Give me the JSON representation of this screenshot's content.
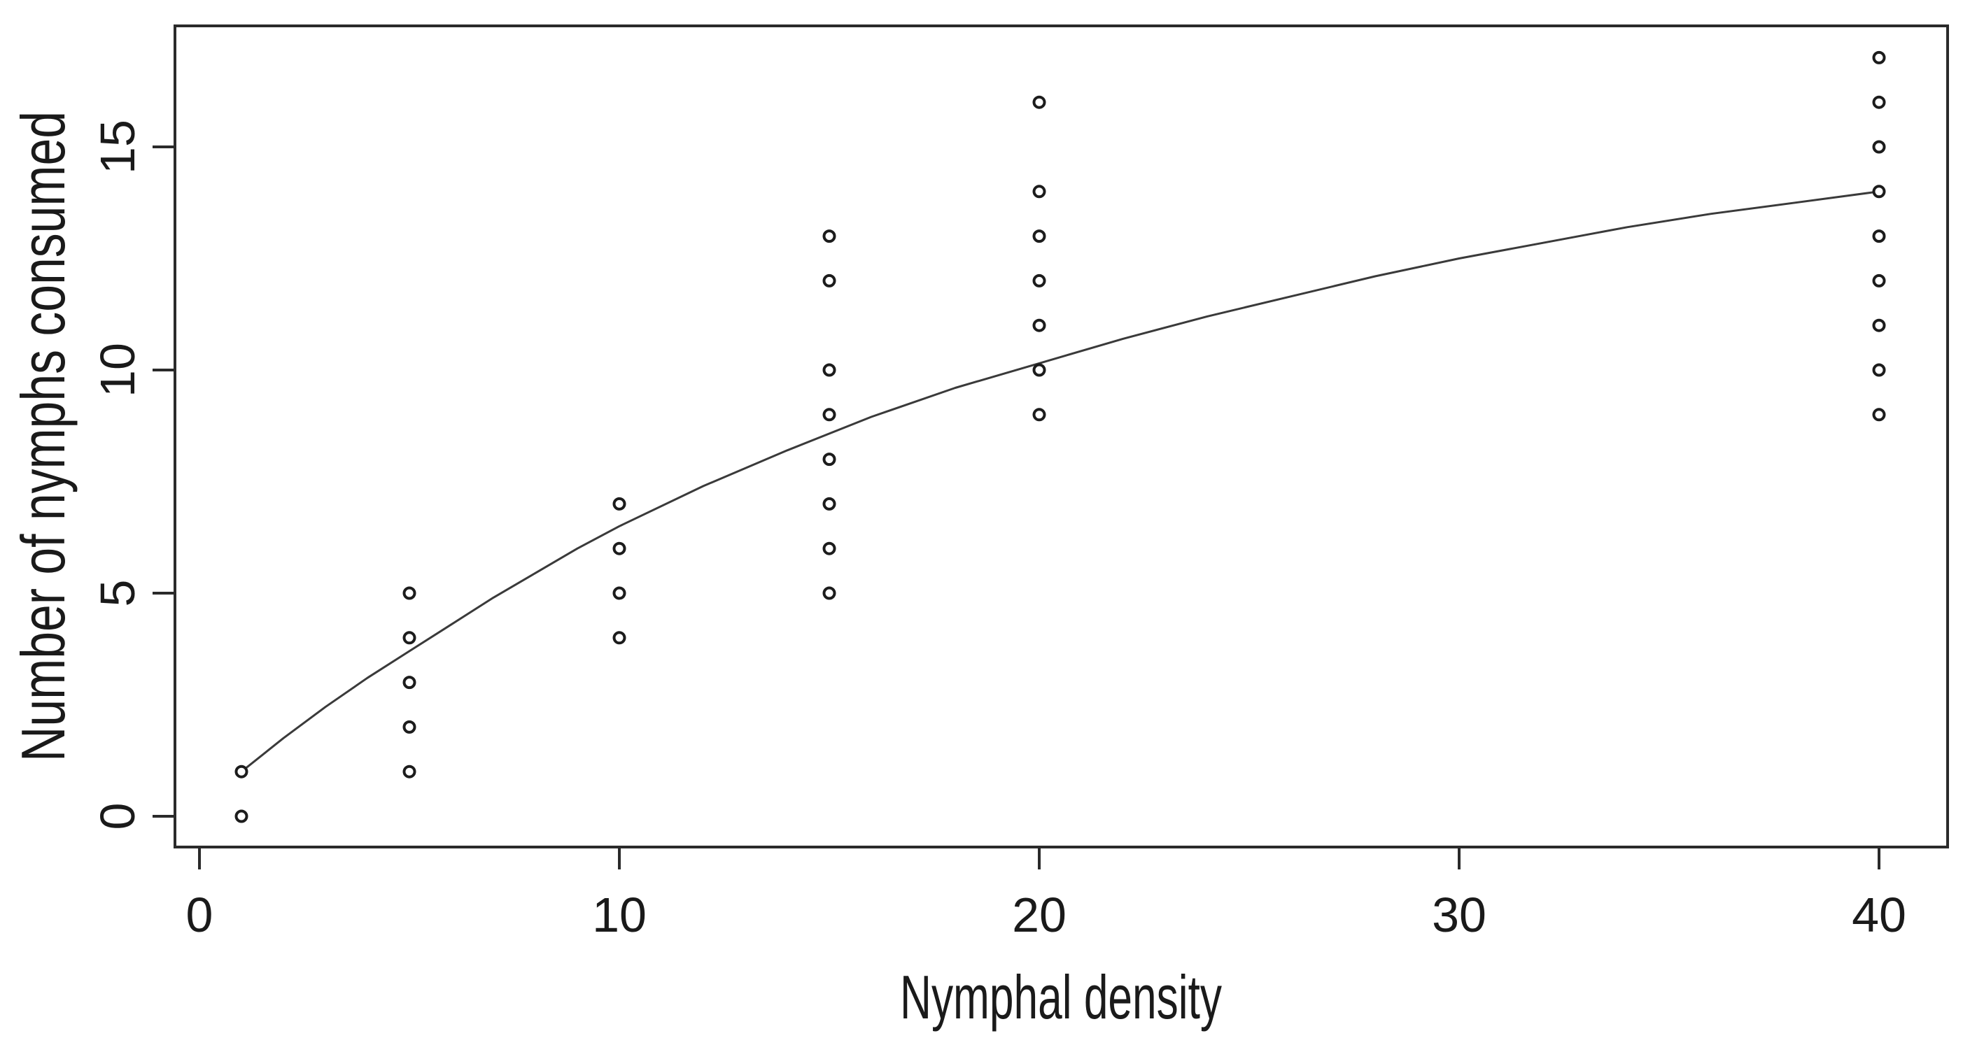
{
  "figure": {
    "background": "#ffffff"
  },
  "chart_data": {
    "type": "scatter",
    "title": "",
    "xlabel": "Nymphal density",
    "ylabel": "Number of nymphs consumed",
    "xlim": [
      -0.6,
      41.6
    ],
    "ylim": [
      -0.7,
      17.7
    ],
    "grid": false,
    "legend": false,
    "frame_box": true,
    "marker": "open-circle",
    "x_tick_values": [
      0,
      10,
      20,
      30,
      40
    ],
    "x_tick_labels": [
      "0",
      "10",
      "20",
      "30",
      "40"
    ],
    "y_tick_values": [
      0,
      5,
      10,
      15
    ],
    "y_tick_labels": [
      "0",
      "5",
      "10",
      "15"
    ],
    "points": [
      {
        "x": 1,
        "y": 0
      },
      {
        "x": 1,
        "y": 1
      },
      {
        "x": 5,
        "y": 1
      },
      {
        "x": 5,
        "y": 2
      },
      {
        "x": 5,
        "y": 3
      },
      {
        "x": 5,
        "y": 4
      },
      {
        "x": 5,
        "y": 5
      },
      {
        "x": 10,
        "y": 4
      },
      {
        "x": 10,
        "y": 5
      },
      {
        "x": 10,
        "y": 6
      },
      {
        "x": 10,
        "y": 7
      },
      {
        "x": 15,
        "y": 5
      },
      {
        "x": 15,
        "y": 6
      },
      {
        "x": 15,
        "y": 7
      },
      {
        "x": 15,
        "y": 8
      },
      {
        "x": 15,
        "y": 9
      },
      {
        "x": 15,
        "y": 10
      },
      {
        "x": 15,
        "y": 12
      },
      {
        "x": 15,
        "y": 13
      },
      {
        "x": 20,
        "y": 9
      },
      {
        "x": 20,
        "y": 10
      },
      {
        "x": 20,
        "y": 11
      },
      {
        "x": 20,
        "y": 12
      },
      {
        "x": 20,
        "y": 13
      },
      {
        "x": 20,
        "y": 14
      },
      {
        "x": 20,
        "y": 16
      },
      {
        "x": 40,
        "y": 9
      },
      {
        "x": 40,
        "y": 10
      },
      {
        "x": 40,
        "y": 11
      },
      {
        "x": 40,
        "y": 12
      },
      {
        "x": 40,
        "y": 13
      },
      {
        "x": 40,
        "y": 14
      },
      {
        "x": 40,
        "y": 15
      },
      {
        "x": 40,
        "y": 16
      },
      {
        "x": 40,
        "y": 17
      }
    ],
    "fitted_curve": {
      "name": "functional-response-fit",
      "x": [
        1,
        2,
        3,
        4,
        5,
        6,
        7,
        8,
        9,
        10,
        12,
        14,
        16,
        18,
        20,
        22,
        24,
        26,
        28,
        30,
        32,
        34,
        36,
        38,
        40
      ],
      "y": [
        1.0,
        1.75,
        2.45,
        3.1,
        3.7,
        4.3,
        4.9,
        5.45,
        6.0,
        6.5,
        7.4,
        8.2,
        8.95,
        9.6,
        10.15,
        10.7,
        11.2,
        11.65,
        12.1,
        12.5,
        12.85,
        13.2,
        13.5,
        13.75,
        14.0
      ]
    },
    "colors": {
      "points": "#1c1c1c",
      "curve": "#3a3a3a",
      "axis": "#2a2a2a",
      "text": "#1a1a1a",
      "background": "#ffffff"
    }
  }
}
